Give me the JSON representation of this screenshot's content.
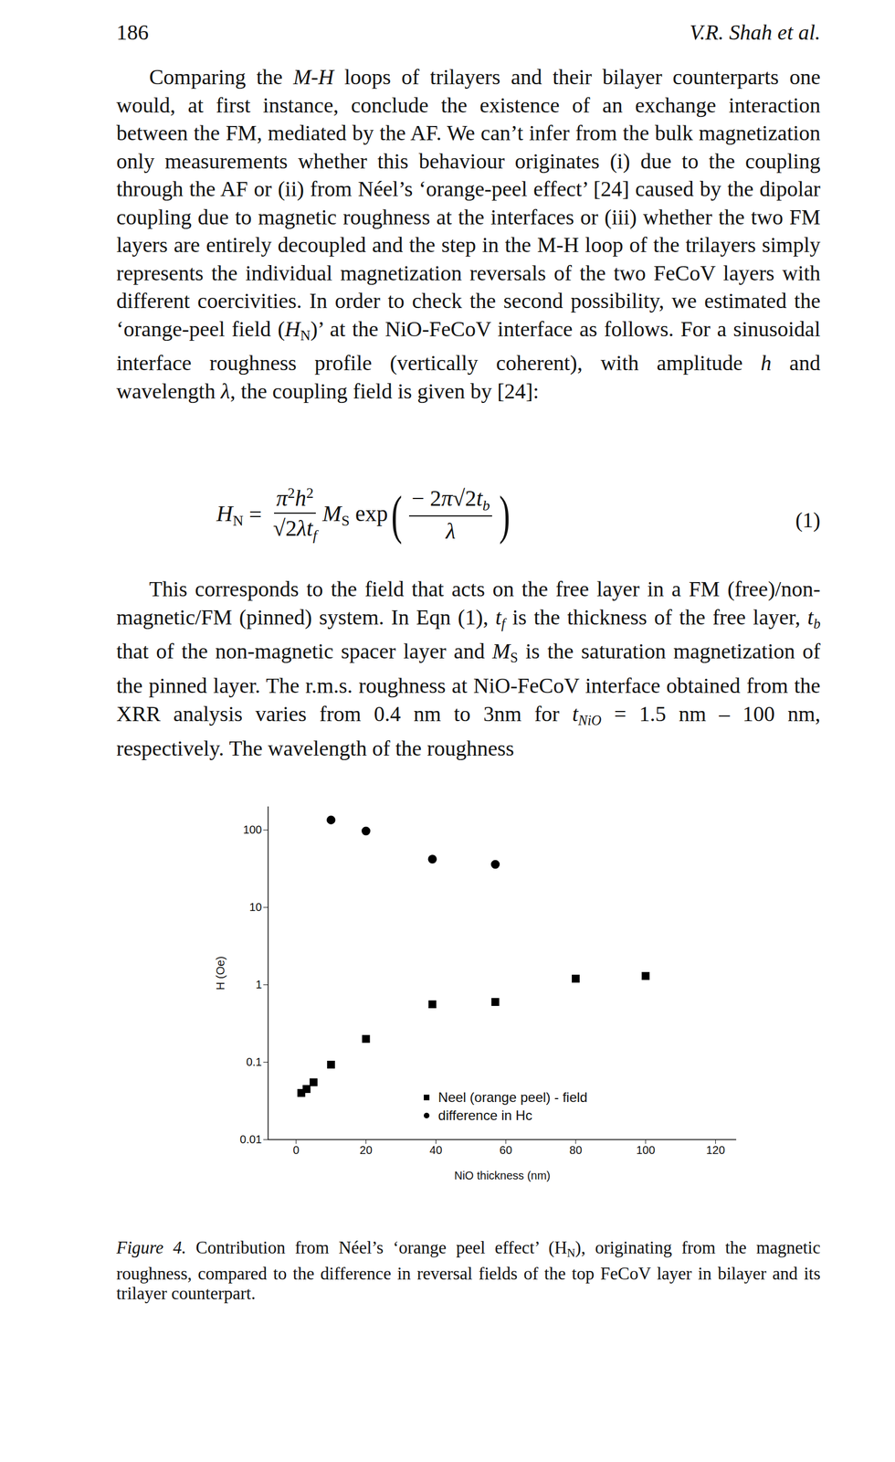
{
  "header": {
    "page": "186",
    "running_head": "V.R. Shah et al."
  },
  "paragraphs": [
    [
      "Comparing the ",
      {
        "text": "M-H",
        "style": "i"
      },
      " loops of trilayers and their bilayer counterparts one would, at first instance, conclude the existence of an exchange interaction between the FM, mediated by the AF.  We can’t infer from the bulk magnetization only measurements whether this behaviour originates (i) due to the coupling through the AF or (ii) from Néel’s ‘orange-peel effect’ [24] caused by the dipolar coupling due to magnetic roughness at the interfaces or (iii) whether the two FM layers are entirely decoupled and the step in the M-H loop of the trilayers simply represents the individual magnetization reversals of the two FeCoV layers with different coercivities.  In order to check the second possibility, we estimated the ‘orange-peel field (",
      {
        "text": "H",
        "style": "i"
      },
      {
        "text": "N",
        "style": "sub"
      },
      ")’ at the NiO-FeCoV interface as follows.  For a sinusoidal interface roughness profile (vertically coherent), with amplitude ",
      {
        "text": "h",
        "style": "i"
      },
      " and wavelength ",
      {
        "text": "λ",
        "style": "i"
      },
      ", the coupling field is given by [24]:"
    ],
    [
      "This corresponds to the field that acts on the free layer in a FM (free)/non-magnetic/FM (pinned) system.  In Eqn (1), ",
      {
        "text": "t",
        "style": "i"
      },
      {
        "text": "f",
        "style": "isub"
      },
      " is the thickness of the free layer, ",
      {
        "text": "t",
        "style": "i"
      },
      {
        "text": "b",
        "style": "isub"
      },
      " that of the non-magnetic spacer layer and ",
      {
        "text": "M",
        "style": "i"
      },
      {
        "text": "S",
        "style": "sub"
      },
      " is the saturation magnetization of the pinned layer.  The r.m.s. roughness at NiO-FeCoV interface obtained from the XRR analysis varies from 0.4 nm to 3nm for ",
      {
        "text": "t",
        "style": "i"
      },
      {
        "text": "NiO",
        "style": "isub"
      },
      " = 1.5 nm – 100 nm, respectively.  The wavelength of the roughness"
    ]
  ],
  "equation": {
    "lhs": [
      {
        "text": "H",
        "style": "i"
      },
      {
        "text": "N",
        "style": "sub"
      }
    ],
    "eq": " = ",
    "frac1_num": [
      {
        "text": "π",
        "style": "i"
      },
      {
        "text": "2",
        "style": "sup"
      },
      {
        "text": "h",
        "style": "i"
      },
      {
        "text": "2",
        "style": "sup"
      }
    ],
    "frac1_den": [
      "√2",
      {
        "text": "λt",
        "style": "i"
      },
      {
        "text": "f",
        "style": "isub"
      }
    ],
    "mid": [
      {
        "text": "M",
        "style": "i"
      },
      {
        "text": "S",
        "style": "sub"
      },
      " exp"
    ],
    "open": "(",
    "frac2_num": [
      "− 2",
      {
        "text": "π",
        "style": "i"
      },
      "√2",
      {
        "text": "t",
        "style": "i"
      },
      {
        "text": "b",
        "style": "isub"
      }
    ],
    "frac2_den": [
      {
        "text": "λ",
        "style": "i"
      }
    ],
    "close": ")",
    "number": "(1)"
  },
  "chart_data": {
    "type": "scatter",
    "xlabel": "NiO thickness (nm)",
    "ylabel": "H (Oe)",
    "log": "y",
    "xlim": [
      -8,
      126
    ],
    "xticks": [
      0,
      20,
      40,
      60,
      80,
      100,
      120
    ],
    "ylim": [
      0.01,
      200
    ],
    "yticks": [
      0.01,
      0.1,
      1,
      10,
      100
    ],
    "legend": "lower center",
    "series": [
      {
        "name": "Neel (orange peel) - field",
        "color": "#000000",
        "marker": "square",
        "x": [
          1.5,
          3,
          5,
          10,
          20,
          39,
          57,
          80,
          100
        ],
        "values": [
          0.04,
          0.045,
          0.055,
          0.093,
          0.2,
          0.56,
          0.6,
          1.2,
          1.3
        ]
      },
      {
        "name": "difference in Hc",
        "color": "#000000",
        "marker": "circle",
        "x": [
          10,
          20,
          39,
          57
        ],
        "values": [
          135,
          97,
          42,
          36
        ]
      }
    ]
  },
  "caption": [
    {
      "text": "Figure 4.",
      "style": "i"
    },
    "  Contribution from Néel’s ‘orange peel effect’ (H",
    {
      "text": "N",
      "style": "sub"
    },
    "), originating from the magnetic roughness, compared to the difference in reversal fields of the top FeCoV layer in bilayer and its trilayer counterpart."
  ]
}
